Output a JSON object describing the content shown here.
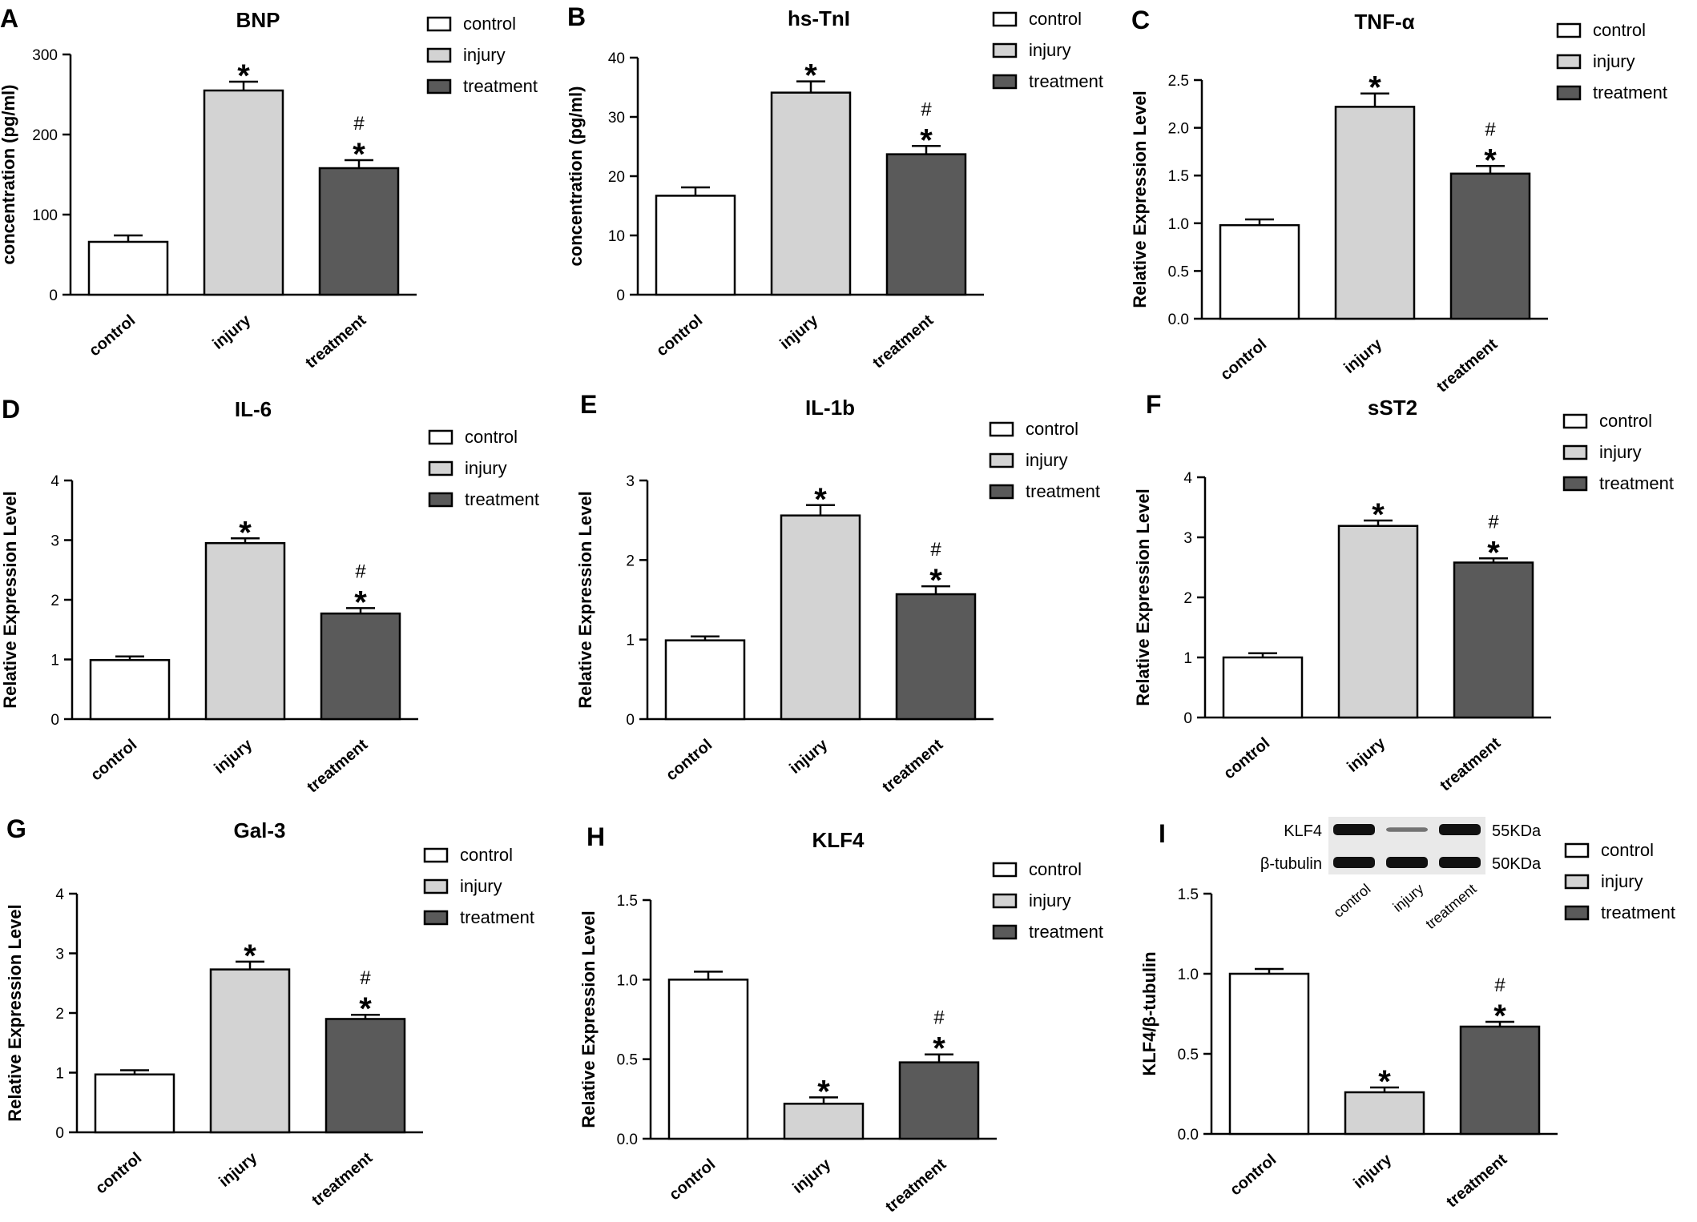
{
  "figure": {
    "legend_labels": [
      "control",
      "injury",
      "treatment"
    ],
    "colors": {
      "control": "#ffffff",
      "injury": "#d3d3d3",
      "treatment": "#5a5a5a",
      "outline": "#000000"
    }
  },
  "chart_data": [
    {
      "panel": "A",
      "type": "bar",
      "title": "BNP",
      "ylabel": "concentration (pg/ml)",
      "categories": [
        "control",
        "injury",
        "treatment"
      ],
      "values": [
        66,
        255,
        158
      ],
      "errors": [
        8,
        11,
        10
      ],
      "ylim": [
        0,
        300
      ],
      "yticks": [
        "0",
        "100",
        "200",
        "300"
      ],
      "annotations": [
        [],
        [
          "*"
        ],
        [
          "#",
          "*"
        ]
      ],
      "legend": [
        "control",
        "injury",
        "treatment"
      ],
      "legend_position": "top-right"
    },
    {
      "panel": "B",
      "type": "bar",
      "title": "hs-TnI",
      "ylabel": "concentration (pg/ml)",
      "categories": [
        "control",
        "injury",
        "treatment"
      ],
      "values": [
        16.7,
        34.1,
        23.7
      ],
      "errors": [
        1.4,
        1.9,
        1.4
      ],
      "ylim": [
        0,
        40
      ],
      "yticks": [
        "0",
        "10",
        "20",
        "30",
        "40"
      ],
      "annotations": [
        [],
        [
          "*"
        ],
        [
          "#",
          "*"
        ]
      ],
      "legend": [
        "control",
        "injury",
        "treatment"
      ],
      "legend_position": "top-right"
    },
    {
      "panel": "C",
      "type": "bar",
      "title": "TNF-α",
      "ylabel": "Relative Expression Level",
      "categories": [
        "control",
        "injury",
        "treatment"
      ],
      "values": [
        0.98,
        2.22,
        1.52
      ],
      "errors": [
        0.06,
        0.14,
        0.08
      ],
      "ylim": [
        0,
        2.5
      ],
      "yticks": [
        "0.0",
        "0.5",
        "1.0",
        "1.5",
        "2.0",
        "2.5"
      ],
      "annotations": [
        [],
        [
          "*"
        ],
        [
          "#",
          "*"
        ]
      ],
      "legend": [
        "control",
        "injury",
        "treatment"
      ],
      "legend_position": "top-right"
    },
    {
      "panel": "D",
      "type": "bar",
      "title": "IL-6",
      "ylabel": "Relative Expression Level",
      "categories": [
        "control",
        "injury",
        "treatment"
      ],
      "values": [
        0.99,
        2.95,
        1.77
      ],
      "errors": [
        0.06,
        0.08,
        0.09
      ],
      "ylim": [
        0,
        4
      ],
      "yticks": [
        "0",
        "1",
        "2",
        "3",
        "4"
      ],
      "annotations": [
        [],
        [
          "*"
        ],
        [
          "#",
          "*"
        ]
      ],
      "legend": [
        "control",
        "injury",
        "treatment"
      ],
      "legend_position": "top-right"
    },
    {
      "panel": "E",
      "type": "bar",
      "title": "IL-1b",
      "ylabel": "Relative Expression Level",
      "categories": [
        "control",
        "injury",
        "treatment"
      ],
      "values": [
        0.99,
        2.56,
        1.57
      ],
      "errors": [
        0.05,
        0.13,
        0.1
      ],
      "ylim": [
        0,
        3
      ],
      "yticks": [
        "0",
        "1",
        "2",
        "3"
      ],
      "annotations": [
        [],
        [
          "*"
        ],
        [
          "#",
          "*"
        ]
      ],
      "legend": [
        "control",
        "injury",
        "treatment"
      ],
      "legend_position": "top-right"
    },
    {
      "panel": "F",
      "type": "bar",
      "title": "sST2",
      "ylabel": "Relative Expression Level",
      "categories": [
        "control",
        "injury",
        "treatment"
      ],
      "values": [
        1.0,
        3.19,
        2.58
      ],
      "errors": [
        0.07,
        0.09,
        0.07
      ],
      "ylim": [
        0,
        4
      ],
      "yticks": [
        "0",
        "1",
        "2",
        "3",
        "4"
      ],
      "annotations": [
        [],
        [
          "*"
        ],
        [
          "#",
          "*"
        ]
      ],
      "legend": [
        "control",
        "injury",
        "treatment"
      ],
      "legend_position": "top-right"
    },
    {
      "panel": "G",
      "type": "bar",
      "title": "Gal-3",
      "ylabel": "Relative Expression Level",
      "categories": [
        "control",
        "injury",
        "treatment"
      ],
      "values": [
        0.97,
        2.73,
        1.9
      ],
      "errors": [
        0.07,
        0.13,
        0.07
      ],
      "ylim": [
        0,
        4
      ],
      "yticks": [
        "0",
        "1",
        "2",
        "3",
        "4"
      ],
      "annotations": [
        [],
        [
          "*"
        ],
        [
          "#",
          "*"
        ]
      ],
      "legend": [
        "control",
        "injury",
        "treatment"
      ],
      "legend_position": "top-right"
    },
    {
      "panel": "H",
      "type": "bar",
      "title": "KLF4",
      "ylabel": "Relative Expression Level",
      "categories": [
        "control",
        "injury",
        "treatment"
      ],
      "values": [
        1.0,
        0.22,
        0.48
      ],
      "errors": [
        0.05,
        0.04,
        0.05
      ],
      "ylim": [
        0,
        1.5
      ],
      "yticks": [
        "0.0",
        "0.5",
        "1.0",
        "1.5"
      ],
      "annotations": [
        [],
        [
          "*"
        ],
        [
          "#",
          "*"
        ]
      ],
      "legend": [
        "control",
        "injury",
        "treatment"
      ],
      "legend_position": "top-right"
    },
    {
      "panel": "I",
      "type": "bar",
      "title": "",
      "ylabel": "KLF4/β-tubulin",
      "categories": [
        "control",
        "injury",
        "treatment"
      ],
      "values": [
        1.0,
        0.26,
        0.67
      ],
      "errors": [
        0.03,
        0.03,
        0.03
      ],
      "ylim": [
        0,
        1.5
      ],
      "yticks": [
        "0.0",
        "0.5",
        "1.0",
        "1.5"
      ],
      "annotations": [
        [],
        [
          "*"
        ],
        [
          "#",
          "*"
        ]
      ],
      "legend": [
        "control",
        "injury",
        "treatment"
      ],
      "legend_position": "top-right",
      "western_blot": {
        "rows": [
          {
            "label": "KLF4",
            "size": "55KDa",
            "band_intensity": [
              1.0,
              0.3,
              1.0
            ]
          },
          {
            "label": "β-tubulin",
            "size": "50KDa",
            "band_intensity": [
              1.0,
              1.0,
              1.0
            ]
          }
        ],
        "lanes": [
          "control",
          "injury",
          "treatment"
        ]
      }
    }
  ]
}
